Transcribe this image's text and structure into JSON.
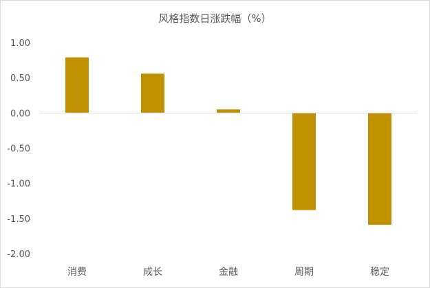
{
  "chart_data": {
    "type": "bar",
    "title": "风格指数日涨跌幅（%）",
    "categories": [
      "消费",
      "成长",
      "金融",
      "周期",
      "稳定"
    ],
    "values": [
      0.79,
      0.56,
      0.05,
      -1.38,
      -1.59
    ],
    "ylim": [
      -2.0,
      1.0
    ],
    "yticks": [
      "1.00",
      "0.50",
      "0.00",
      "-0.50",
      "-1.00",
      "-1.50",
      "-2.00"
    ],
    "ytick_values": [
      1.0,
      0.5,
      0.0,
      -0.5,
      -1.0,
      -1.5,
      -2.0
    ],
    "grid": false,
    "bar_color": "#c09100",
    "axis_color": "#d9d9d9"
  }
}
